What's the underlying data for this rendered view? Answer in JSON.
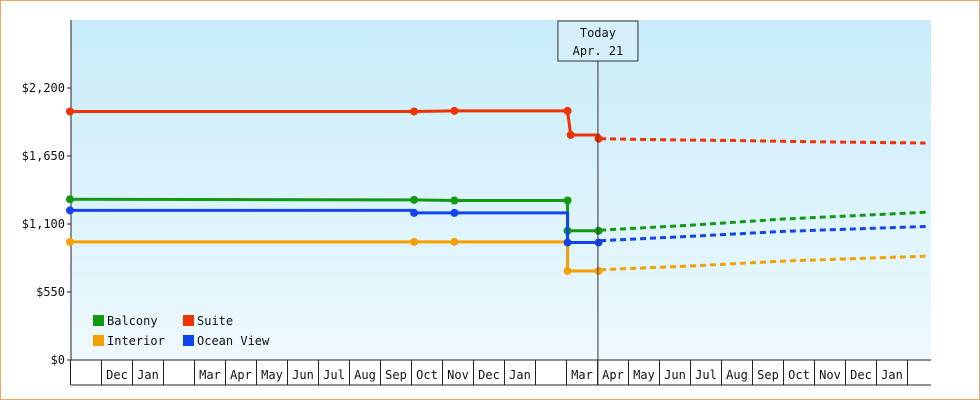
{
  "chart_data": {
    "type": "line",
    "ylim": [
      0,
      2750
    ],
    "y_ticks": [
      {
        "value": 0,
        "label": "$0"
      },
      {
        "value": 550,
        "label": "$550"
      },
      {
        "value": 1100,
        "label": "$1,100"
      },
      {
        "value": 1650,
        "label": "$1,650"
      },
      {
        "value": 2200,
        "label": "$2,200"
      }
    ],
    "x_month_labels": [
      {
        "m": 1,
        "label": "Dec"
      },
      {
        "m": 2,
        "label": "Jan"
      },
      {
        "m": 4,
        "label": "Mar"
      },
      {
        "m": 5,
        "label": "Apr"
      },
      {
        "m": 6,
        "label": "May"
      },
      {
        "m": 7,
        "label": "Jun"
      },
      {
        "m": 8,
        "label": "Jul"
      },
      {
        "m": 9,
        "label": "Aug"
      },
      {
        "m": 10,
        "label": "Sep"
      },
      {
        "m": 11,
        "label": "Oct"
      },
      {
        "m": 12,
        "label": "Nov"
      },
      {
        "m": 13,
        "label": "Dec"
      },
      {
        "m": 14,
        "label": "Jan"
      },
      {
        "m": 16,
        "label": "Mar"
      },
      {
        "m": 17,
        "label": "Apr"
      },
      {
        "m": 18,
        "label": "May"
      },
      {
        "m": 19,
        "label": "Jun"
      },
      {
        "m": 20,
        "label": "Jul"
      },
      {
        "m": 21,
        "label": "Aug"
      },
      {
        "m": 22,
        "label": "Sep"
      },
      {
        "m": 23,
        "label": "Oct"
      },
      {
        "m": 24,
        "label": "Nov"
      },
      {
        "m": 25,
        "label": "Dec"
      },
      {
        "m": 26,
        "label": "Jan"
      }
    ],
    "today": {
      "line1": "Today",
      "line2": "Apr. 21",
      "x": 17.03
    },
    "series": [
      {
        "name": "Balcony",
        "color": "#119911",
        "points": [
          [
            0,
            1300
          ],
          [
            11.1,
            1295
          ],
          [
            12.4,
            1290
          ],
          [
            16.05,
            1290
          ],
          [
            16.05,
            1045
          ],
          [
            17.05,
            1045
          ]
        ],
        "markers": [
          0,
          1,
          2,
          3,
          4,
          5
        ],
        "forecast": [
          [
            17.1,
            1050
          ],
          [
            20,
            1090
          ],
          [
            23,
            1140
          ],
          [
            27.6,
            1195
          ]
        ]
      },
      {
        "name": "Suite",
        "color": "#ee3300",
        "points": [
          [
            0,
            2010
          ],
          [
            11.1,
            2010
          ],
          [
            12.4,
            2015
          ],
          [
            16.05,
            2015
          ],
          [
            16.15,
            1820
          ],
          [
            17.05,
            1820
          ],
          [
            17.05,
            1790
          ]
        ],
        "markers": [
          0,
          1,
          2,
          3,
          4,
          6
        ],
        "forecast": [
          [
            17.1,
            1790
          ],
          [
            19.5,
            1780
          ],
          [
            21.5,
            1775
          ],
          [
            24,
            1765
          ],
          [
            27.6,
            1755
          ]
        ]
      },
      {
        "name": "Interior",
        "color": "#f5a000",
        "points": [
          [
            0,
            955
          ],
          [
            11.1,
            955
          ],
          [
            12.4,
            955
          ],
          [
            16.05,
            955
          ],
          [
            16.05,
            720
          ],
          [
            17.05,
            720
          ]
        ],
        "markers": [
          0,
          1,
          2,
          4,
          5
        ],
        "forecast": [
          [
            17.1,
            730
          ],
          [
            20,
            760
          ],
          [
            23,
            800
          ],
          [
            27.6,
            840
          ]
        ]
      },
      {
        "name": "Ocean View",
        "color": "#1144ee",
        "points": [
          [
            0,
            1210
          ],
          [
            11.1,
            1210
          ],
          [
            11.1,
            1190
          ],
          [
            12.4,
            1190
          ],
          [
            16.05,
            1190
          ],
          [
            16.05,
            950
          ],
          [
            17.05,
            950
          ]
        ],
        "markers": [
          0,
          2,
          3,
          5,
          6
        ],
        "forecast": [
          [
            17.1,
            965
          ],
          [
            20,
            1000
          ],
          [
            23,
            1040
          ],
          [
            27.6,
            1080
          ]
        ]
      }
    ],
    "legend": [
      {
        "label": "Balcony",
        "color": "#119911"
      },
      {
        "label": "Suite",
        "color": "#ee3300"
      },
      {
        "label": "Interior",
        "color": "#f5a000"
      },
      {
        "label": "Ocean View",
        "color": "#1144ee"
      }
    ]
  }
}
